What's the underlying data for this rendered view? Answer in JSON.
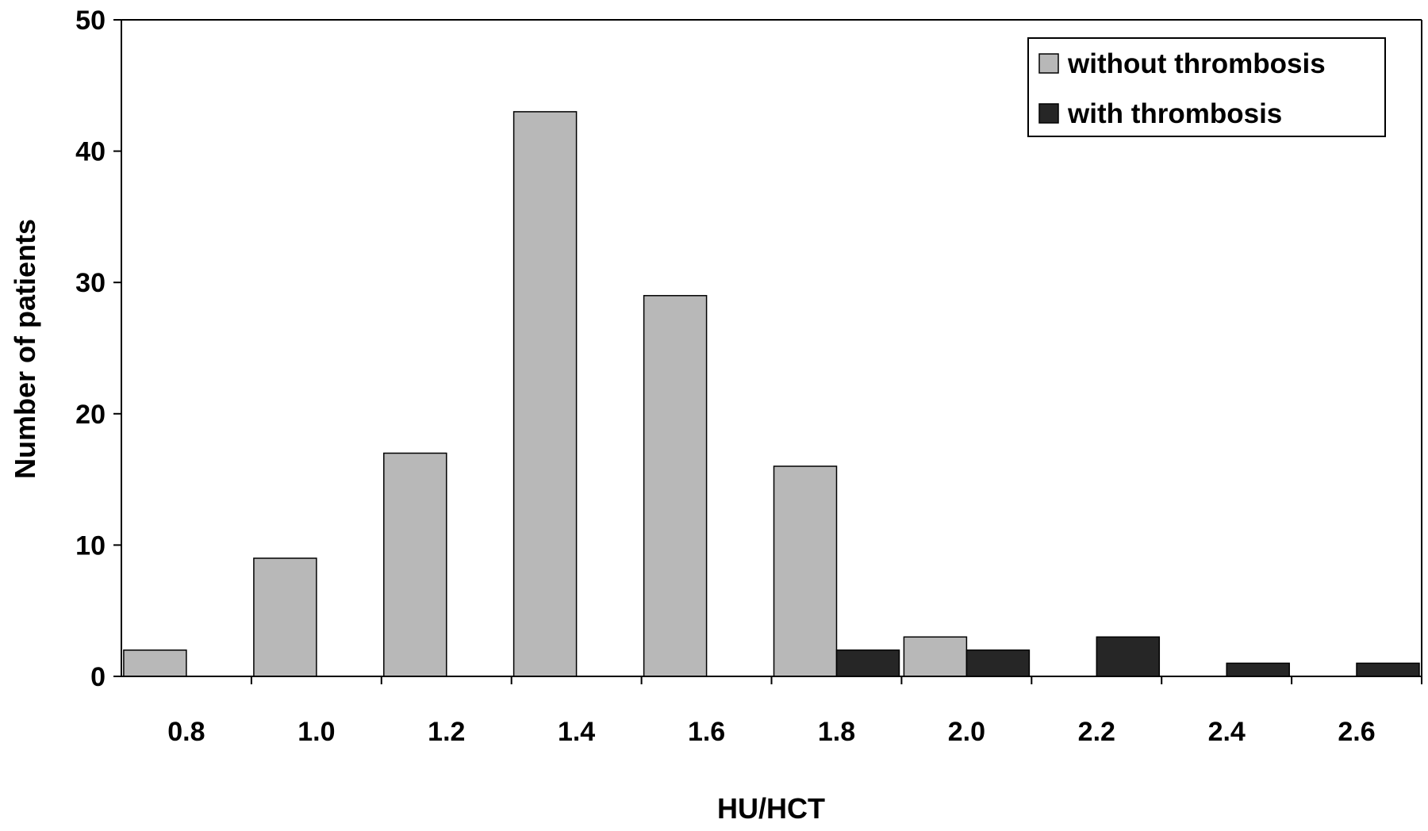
{
  "chart_data": {
    "type": "bar",
    "title": "",
    "xlabel": "HU/HCT",
    "ylabel": "Number of patients",
    "categories": [
      "0.8",
      "1.0",
      "1.2",
      "1.4",
      "1.6",
      "1.8",
      "2.0",
      "2.2",
      "2.4",
      "2.6"
    ],
    "series": [
      {
        "name": "without thrombosis",
        "color": "#b8b8b8",
        "values": [
          2,
          9,
          17,
          43,
          29,
          16,
          3,
          0,
          0,
          0
        ]
      },
      {
        "name": "with thrombosis",
        "color": "#262626",
        "values": [
          0,
          0,
          0,
          0,
          0,
          2,
          2,
          3,
          1,
          1
        ]
      }
    ],
    "ylim": [
      0,
      50
    ],
    "yticks": [
      "0",
      "10",
      "20",
      "30",
      "40",
      "50"
    ],
    "grid": false,
    "legend_position": "top-right"
  }
}
